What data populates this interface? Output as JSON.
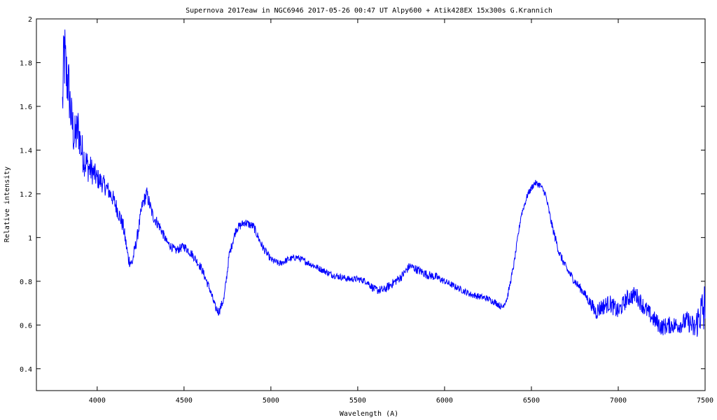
{
  "chart_data": {
    "type": "line",
    "title": "Supernova 2017eaw in NGC6946   2017-05-26 00:47 UT   Alpy600 + Atik428EX  15x300s   G.Krannich",
    "xlabel": "Wavelength (A)",
    "ylabel": "Relative intensity",
    "xlim": [
      3650,
      7500
    ],
    "ylim": [
      0.3,
      2.0
    ],
    "x_ticks": [
      "4000",
      "4500",
      "5000",
      "5500",
      "6000",
      "6500",
      "7000",
      "7500"
    ],
    "y_ticks": [
      "2",
      "1.8",
      "1.6",
      "1.4",
      "1.2",
      "1",
      "0.8",
      "0.6",
      "0.4"
    ],
    "grid": false,
    "line_color": "#0000ff",
    "series": [
      {
        "x": [
          3800,
          3810,
          3820,
          3835,
          3850,
          3870,
          3890,
          3910,
          3930,
          3950,
          3975,
          4000,
          4030,
          4060,
          4090,
          4120,
          4150,
          4180,
          4200,
          4230,
          4260,
          4285,
          4320,
          4360,
          4400,
          4450,
          4500,
          4550,
          4600,
          4650,
          4680,
          4700,
          4730,
          4760,
          4800,
          4850,
          4900,
          4950,
          5000,
          5050,
          5100,
          5150,
          5200,
          5250,
          5300,
          5350,
          5400,
          5450,
          5500,
          5550,
          5600,
          5650,
          5700,
          5750,
          5800,
          5850,
          5900,
          5950,
          6000,
          6050,
          6100,
          6150,
          6200,
          6250,
          6300,
          6330,
          6360,
          6400,
          6440,
          6480,
          6520,
          6550,
          6580,
          6620,
          6660,
          6700,
          6750,
          6800,
          6840,
          6870,
          6900,
          6950,
          7000,
          7050,
          7100,
          7150,
          7200,
          7250,
          7300,
          7350,
          7400,
          7440,
          7470,
          7490,
          7500
        ],
        "y": [
          1.6,
          1.85,
          1.75,
          1.7,
          1.55,
          1.45,
          1.5,
          1.4,
          1.35,
          1.32,
          1.3,
          1.27,
          1.25,
          1.22,
          1.18,
          1.12,
          1.05,
          0.9,
          0.88,
          1.0,
          1.15,
          1.2,
          1.1,
          1.05,
          0.98,
          0.94,
          0.96,
          0.92,
          0.86,
          0.76,
          0.68,
          0.66,
          0.72,
          0.92,
          1.04,
          1.07,
          1.05,
          0.96,
          0.9,
          0.88,
          0.9,
          0.91,
          0.89,
          0.87,
          0.85,
          0.83,
          0.82,
          0.81,
          0.81,
          0.8,
          0.76,
          0.76,
          0.79,
          0.82,
          0.87,
          0.85,
          0.83,
          0.82,
          0.8,
          0.78,
          0.76,
          0.74,
          0.73,
          0.72,
          0.7,
          0.68,
          0.72,
          0.88,
          1.1,
          1.2,
          1.25,
          1.24,
          1.2,
          1.05,
          0.93,
          0.86,
          0.8,
          0.75,
          0.7,
          0.66,
          0.68,
          0.7,
          0.66,
          0.72,
          0.74,
          0.68,
          0.63,
          0.59,
          0.6,
          0.6,
          0.62,
          0.58,
          0.65,
          0.66,
          0.65
        ],
        "noise": [
          0.14,
          0.2,
          0.16,
          0.14,
          0.12,
          0.11,
          0.1,
          0.09,
          0.08,
          0.07,
          0.06,
          0.05,
          0.045,
          0.04,
          0.04,
          0.04,
          0.035,
          0.03,
          0.03,
          0.03,
          0.03,
          0.035,
          0.03,
          0.025,
          0.02,
          0.02,
          0.02,
          0.02,
          0.02,
          0.02,
          0.02,
          0.02,
          0.02,
          0.02,
          0.02,
          0.02,
          0.02,
          0.02,
          0.015,
          0.015,
          0.015,
          0.015,
          0.015,
          0.015,
          0.015,
          0.015,
          0.015,
          0.015,
          0.015,
          0.015,
          0.02,
          0.02,
          0.02,
          0.02,
          0.02,
          0.02,
          0.02,
          0.02,
          0.015,
          0.015,
          0.015,
          0.015,
          0.015,
          0.015,
          0.015,
          0.015,
          0.015,
          0.015,
          0.015,
          0.015,
          0.015,
          0.015,
          0.015,
          0.02,
          0.02,
          0.02,
          0.02,
          0.02,
          0.025,
          0.04,
          0.04,
          0.04,
          0.04,
          0.04,
          0.04,
          0.04,
          0.04,
          0.04,
          0.04,
          0.04,
          0.045,
          0.06,
          0.09,
          0.14,
          0.16
        ]
      }
    ]
  }
}
